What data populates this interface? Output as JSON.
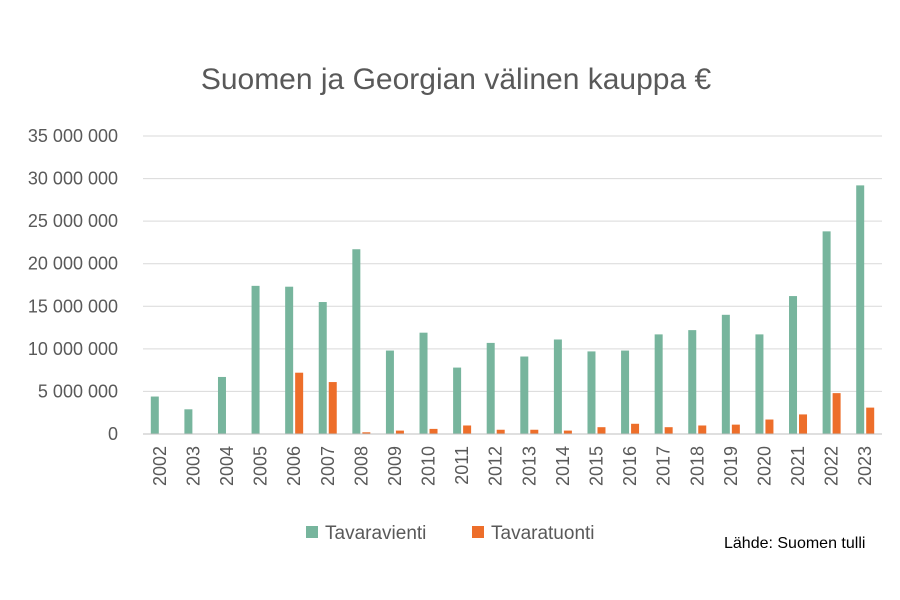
{
  "chart_data": {
    "type": "bar",
    "title": "Suomen ja Georgian välinen kauppa €",
    "categories": [
      "2002",
      "2003",
      "2004",
      "2005",
      "2006",
      "2007",
      "2008",
      "2009",
      "2010",
      "2011",
      "2012",
      "2013",
      "2014",
      "2015",
      "2016",
      "2017",
      "2018",
      "2019",
      "2020",
      "2021",
      "2022",
      "2023"
    ],
    "series": [
      {
        "name": "Tavaravienti",
        "color": "#77b59d",
        "values": [
          4400000,
          2900000,
          6700000,
          17400000,
          17300000,
          15500000,
          21700000,
          9800000,
          11900000,
          7800000,
          10700000,
          9100000,
          11100000,
          9700000,
          9800000,
          11700000,
          12200000,
          14000000,
          11700000,
          16200000,
          23800000,
          29200000
        ]
      },
      {
        "name": "Tavaratuonti",
        "color": "#ed6e2a",
        "values": [
          0,
          0,
          0,
          0,
          7200000,
          6100000,
          200000,
          400000,
          600000,
          1000000,
          500000,
          500000,
          400000,
          800000,
          1200000,
          800000,
          1000000,
          1100000,
          1700000,
          2300000,
          4800000,
          3100000
        ]
      }
    ],
    "yticks": [
      "0",
      "5 000 000",
      "10 000 000",
      "15 000 000",
      "20 000 000",
      "25 000 000",
      "30 000 000",
      "35 000 000"
    ],
    "ylim": [
      0,
      35000000
    ],
    "grid": true,
    "legend_position": "bottom",
    "source": "Lähde: Suomen tulli"
  }
}
